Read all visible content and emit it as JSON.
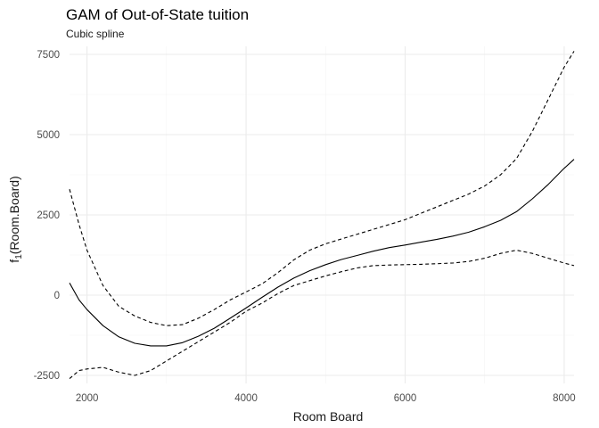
{
  "chart_data": {
    "type": "line",
    "title": "GAM of Out-of-State tuition",
    "subtitle": "Cubic spline",
    "xlabel": "Room Board",
    "ylabel_main": "f",
    "ylabel_sub": "1",
    "ylabel_arg": "(Room.Board)",
    "xlim": [
      1780,
      8124
    ],
    "ylim": [
      -2750,
      7750
    ],
    "x_ticks": [
      2000,
      4000,
      6000,
      8000
    ],
    "y_ticks": [
      -2500,
      0,
      2500,
      5000,
      7500
    ],
    "grid": true,
    "series": [
      {
        "role": "fit",
        "linestyle": "solid",
        "color": "#000000",
        "x": [
          1780,
          1900,
          2000,
          2200,
          2400,
          2600,
          2800,
          3000,
          3200,
          3400,
          3600,
          3800,
          4000,
          4200,
          4400,
          4600,
          4800,
          5000,
          5200,
          5400,
          5600,
          5800,
          6000,
          6200,
          6400,
          6600,
          6800,
          7000,
          7200,
          7400,
          7600,
          7800,
          8000,
          8124
        ],
        "y": [
          380,
          -150,
          -450,
          -950,
          -1300,
          -1500,
          -1580,
          -1580,
          -1480,
          -1280,
          -1030,
          -720,
          -400,
          -70,
          250,
          530,
          760,
          950,
          1110,
          1240,
          1370,
          1480,
          1560,
          1650,
          1740,
          1840,
          1960,
          2130,
          2330,
          2600,
          3000,
          3450,
          3950,
          4230
        ]
      },
      {
        "role": "upper",
        "linestyle": "dashed",
        "color": "#000000",
        "x": [
          1780,
          1900,
          2000,
          2200,
          2400,
          2600,
          2800,
          3000,
          3200,
          3400,
          3600,
          3800,
          4000,
          4200,
          4400,
          4600,
          4800,
          5000,
          5200,
          5400,
          5600,
          5800,
          6000,
          6200,
          6400,
          6600,
          6800,
          7000,
          7200,
          7400,
          7600,
          7800,
          8000,
          8124
        ],
        "y": [
          3300,
          2200,
          1400,
          300,
          -350,
          -650,
          -850,
          -950,
          -920,
          -720,
          -450,
          -150,
          100,
          350,
          700,
          1100,
          1400,
          1600,
          1750,
          1900,
          2050,
          2200,
          2350,
          2550,
          2750,
          2950,
          3150,
          3400,
          3750,
          4250,
          5100,
          6100,
          7100,
          7600
        ]
      },
      {
        "role": "lower",
        "linestyle": "dashed",
        "color": "#000000",
        "x": [
          1780,
          1900,
          2000,
          2200,
          2400,
          2600,
          2800,
          3000,
          3200,
          3400,
          3600,
          3800,
          4000,
          4200,
          4400,
          4600,
          4800,
          5000,
          5200,
          5400,
          5600,
          5800,
          6000,
          6200,
          6400,
          6600,
          6800,
          7000,
          7200,
          7400,
          7600,
          7800,
          8000,
          8124
        ],
        "y": [
          -2600,
          -2350,
          -2300,
          -2250,
          -2400,
          -2500,
          -2350,
          -2050,
          -1750,
          -1450,
          -1150,
          -850,
          -500,
          -250,
          50,
          300,
          450,
          600,
          730,
          850,
          920,
          940,
          950,
          960,
          980,
          1000,
          1050,
          1150,
          1300,
          1400,
          1300,
          1150,
          1000,
          920
        ]
      }
    ]
  }
}
